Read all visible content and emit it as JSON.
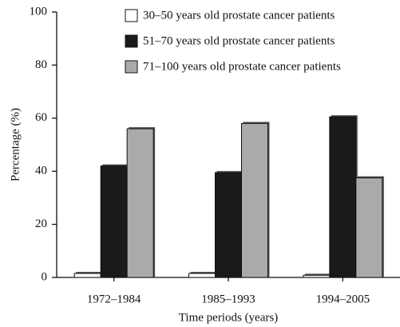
{
  "chart_data": {
    "type": "bar",
    "x_label": "Time periods (years)",
    "y_label": "Percentage (%)",
    "categories": [
      "1972–1984",
      "1985–1993",
      "1994–2005"
    ],
    "series": [
      {
        "name": "30–50 years old prostate cancer patients",
        "color": "#ffffff",
        "values": [
          1.5,
          1.5,
          0.8
        ]
      },
      {
        "name": "51–70 years old prostate cancer patients",
        "color": "#1a1a1a",
        "values": [
          42,
          39.5,
          60.5
        ]
      },
      {
        "name": "71–100 years old prostate cancer patients",
        "color": "#aaaaaa",
        "values": [
          56,
          58,
          37.5
        ]
      }
    ],
    "ylim": [
      0,
      100
    ],
    "yticks": [
      0,
      20,
      40,
      60,
      80,
      100
    ],
    "grid": false,
    "legend": "top-right"
  }
}
